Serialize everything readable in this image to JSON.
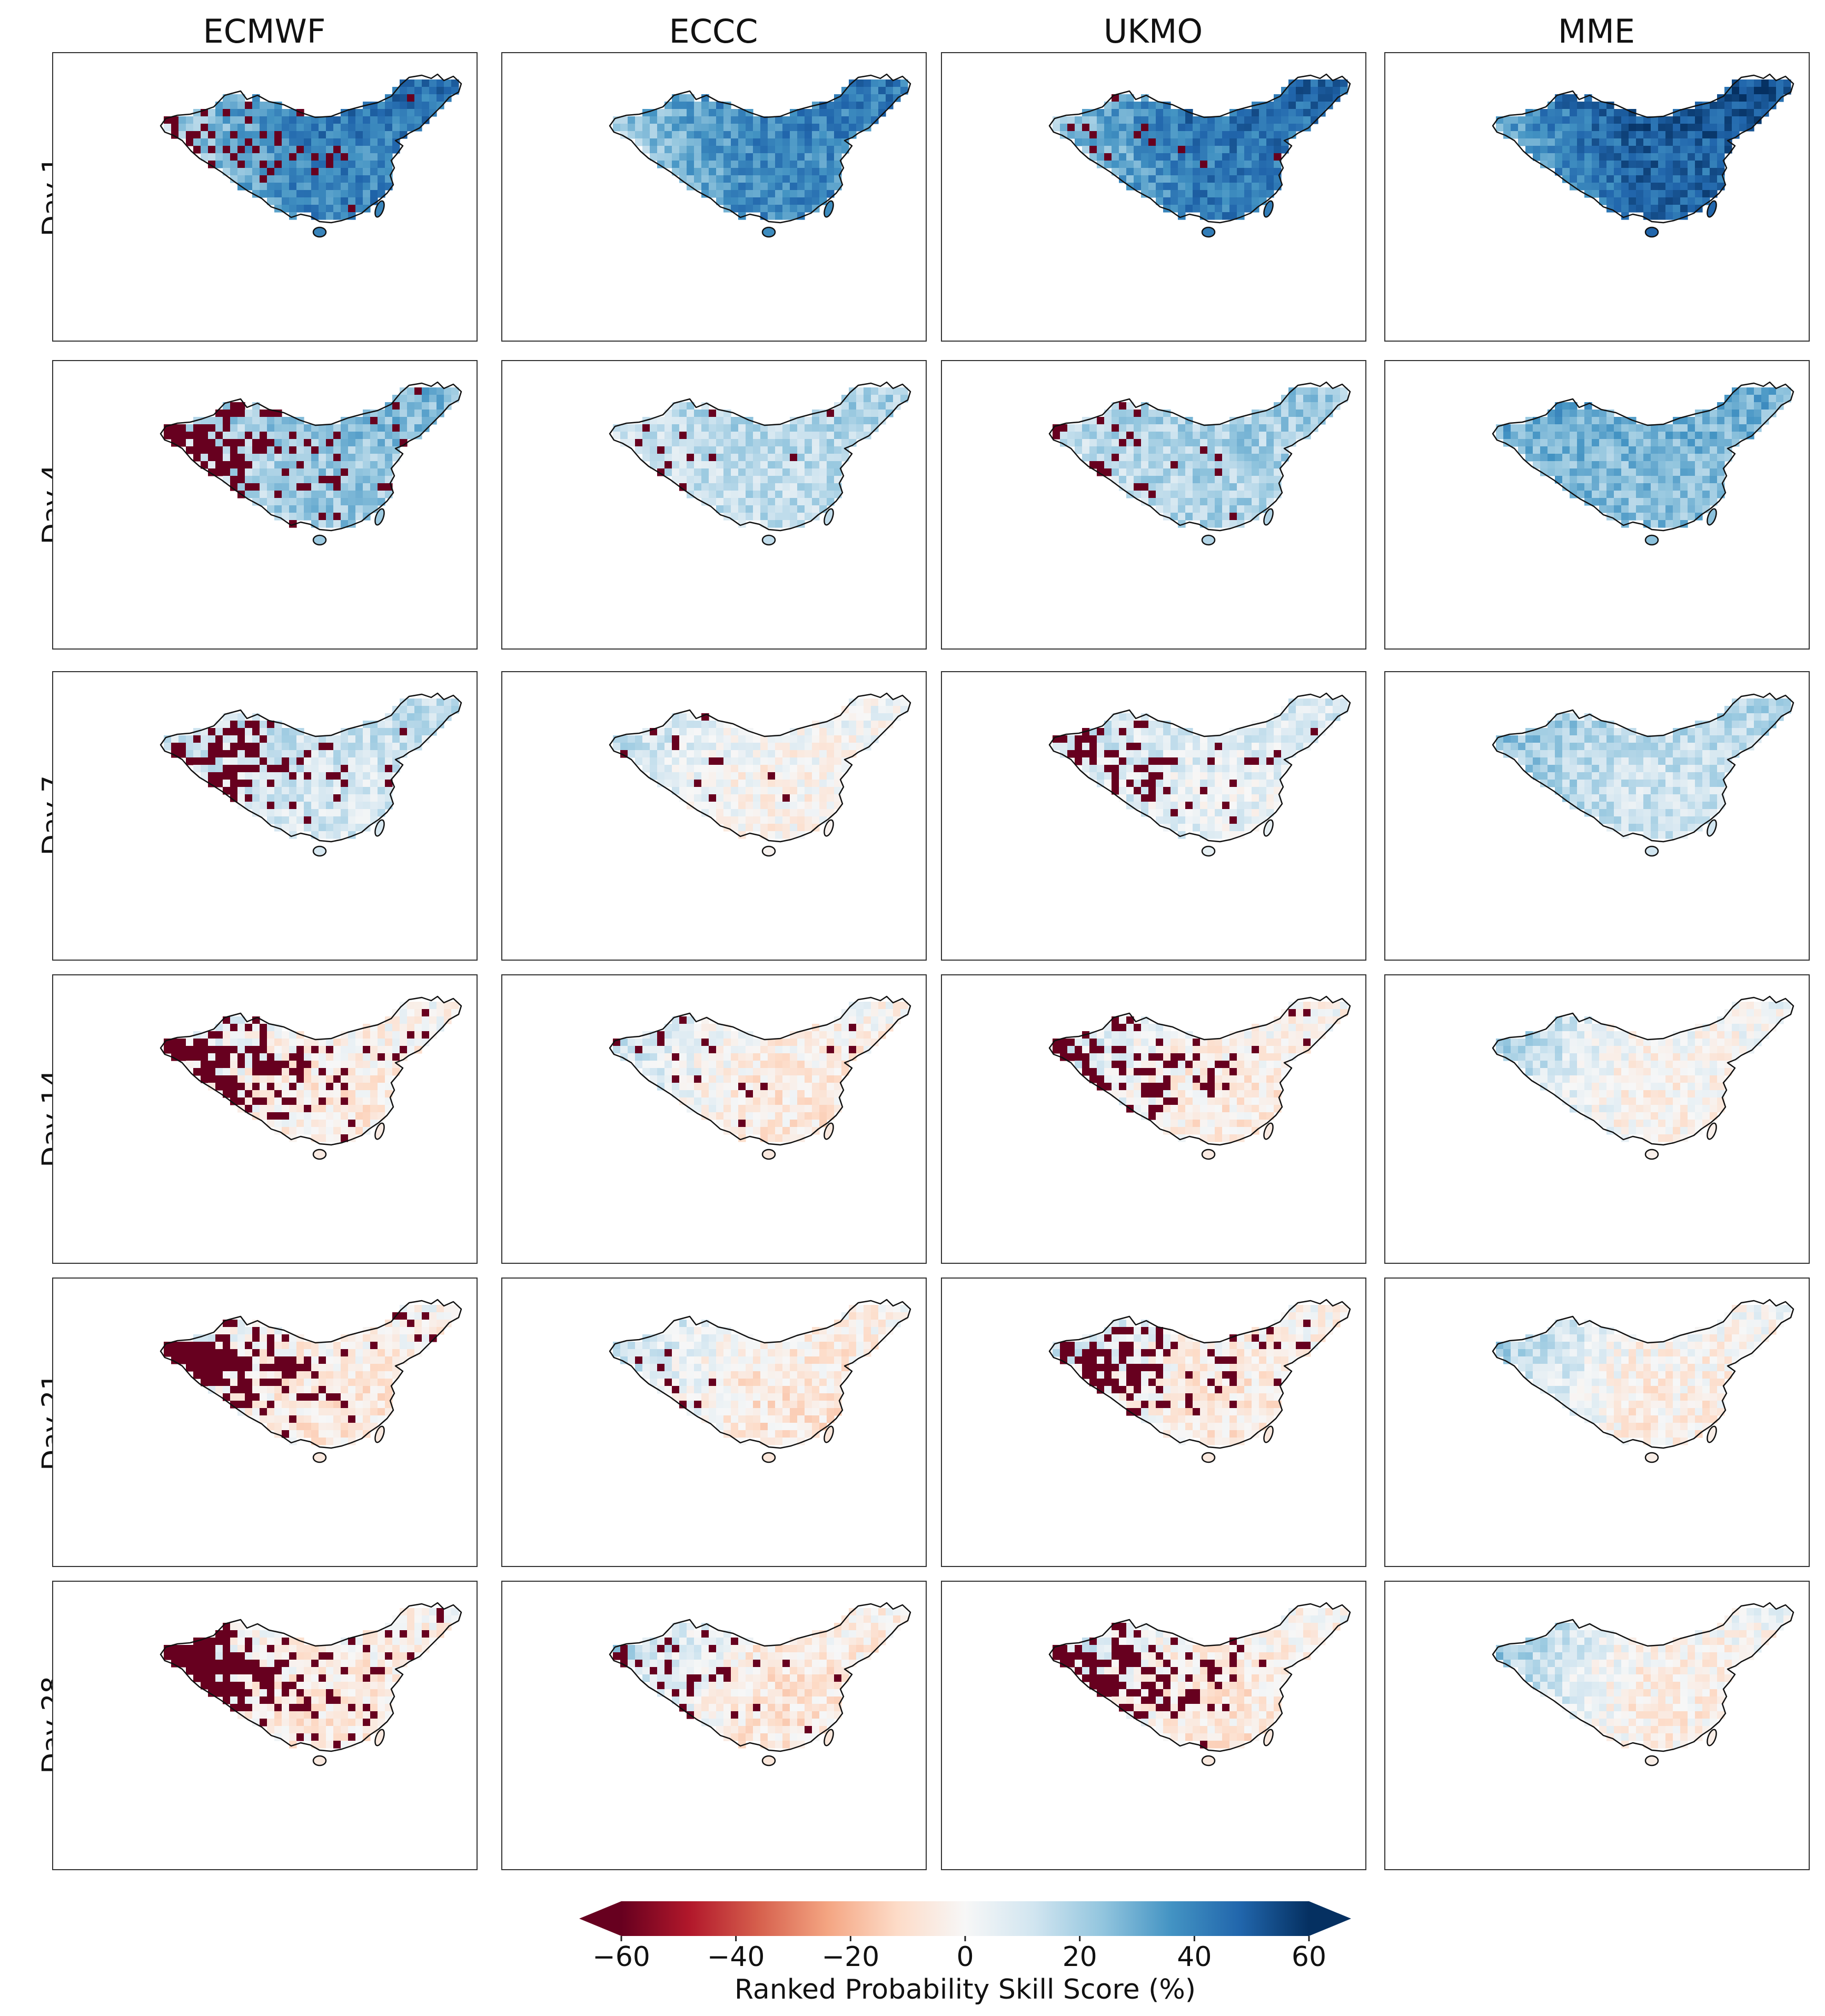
{
  "figure": {
    "columns": [
      "ECMWF",
      "ECCC",
      "UKMO",
      "MME"
    ],
    "rows": [
      "Day 1",
      "Day 4",
      "Day 7",
      "Day 14",
      "Day 21",
      "Day 28"
    ]
  },
  "chart_data": {
    "type": "heatmap",
    "description_units": "Ranked Probability Skill Score (%) on a lat/lon grid over China; values approximated per panel",
    "panels": [
      {
        "model": "ECMWF",
        "lead": "Day 1",
        "base_rpss": 40,
        "west_rpss": 15,
        "bad_fraction": 0.22
      },
      {
        "model": "ECCC",
        "lead": "Day 1",
        "base_rpss": 38,
        "west_rpss": 18,
        "bad_fraction": 0.0
      },
      {
        "model": "UKMO",
        "lead": "Day 1",
        "base_rpss": 42,
        "west_rpss": 20,
        "bad_fraction": 0.06
      },
      {
        "model": "MME",
        "lead": "Day 1",
        "base_rpss": 48,
        "west_rpss": 30,
        "bad_fraction": 0.0
      },
      {
        "model": "ECMWF",
        "lead": "Day 4",
        "base_rpss": 22,
        "west_rpss": 10,
        "bad_fraction": 0.55
      },
      {
        "model": "ECCC",
        "lead": "Day 4",
        "base_rpss": 15,
        "west_rpss": 10,
        "bad_fraction": 0.08
      },
      {
        "model": "UKMO",
        "lead": "Day 4",
        "base_rpss": 18,
        "west_rpss": 12,
        "bad_fraction": 0.2
      },
      {
        "model": "MME",
        "lead": "Day 4",
        "base_rpss": 25,
        "west_rpss": 28,
        "bad_fraction": 0.0
      },
      {
        "model": "ECMWF",
        "lead": "Day 7",
        "base_rpss": 10,
        "west_rpss": 8,
        "bad_fraction": 0.45
      },
      {
        "model": "ECCC",
        "lead": "Day 7",
        "base_rpss": -2,
        "west_rpss": 12,
        "bad_fraction": 0.05
      },
      {
        "model": "UKMO",
        "lead": "Day 7",
        "base_rpss": 5,
        "west_rpss": 10,
        "bad_fraction": 0.3
      },
      {
        "model": "MME",
        "lead": "Day 7",
        "base_rpss": 12,
        "west_rpss": 22,
        "bad_fraction": 0.0
      },
      {
        "model": "ECMWF",
        "lead": "Day 14",
        "base_rpss": -5,
        "west_rpss": 5,
        "bad_fraction": 0.6
      },
      {
        "model": "ECCC",
        "lead": "Day 14",
        "base_rpss": -6,
        "west_rpss": 12,
        "bad_fraction": 0.1
      },
      {
        "model": "UKMO",
        "lead": "Day 14",
        "base_rpss": -5,
        "west_rpss": 10,
        "bad_fraction": 0.5
      },
      {
        "model": "MME",
        "lead": "Day 14",
        "base_rpss": -3,
        "west_rpss": 18,
        "bad_fraction": 0.0
      },
      {
        "model": "ECMWF",
        "lead": "Day 21",
        "base_rpss": -6,
        "west_rpss": 5,
        "bad_fraction": 0.65
      },
      {
        "model": "ECCC",
        "lead": "Day 21",
        "base_rpss": -7,
        "west_rpss": 14,
        "bad_fraction": 0.06
      },
      {
        "model": "UKMO",
        "lead": "Day 21",
        "base_rpss": -6,
        "west_rpss": 10,
        "bad_fraction": 0.5
      },
      {
        "model": "MME",
        "lead": "Day 21",
        "base_rpss": -4,
        "west_rpss": 18,
        "bad_fraction": 0.0
      },
      {
        "model": "ECMWF",
        "lead": "Day 28",
        "base_rpss": -6,
        "west_rpss": 5,
        "bad_fraction": 0.75
      },
      {
        "model": "ECCC",
        "lead": "Day 28",
        "base_rpss": -7,
        "west_rpss": 15,
        "bad_fraction": 0.2
      },
      {
        "model": "UKMO",
        "lead": "Day 28",
        "base_rpss": -6,
        "west_rpss": 10,
        "bad_fraction": 0.55
      },
      {
        "model": "MME",
        "lead": "Day 28",
        "base_rpss": -4,
        "west_rpss": 20,
        "bad_fraction": 0.0
      }
    ],
    "bad_value": -60,
    "colorbar": {
      "label": "Ranked Probability Skill Score (%)",
      "vmin": -60,
      "vmax": 60,
      "ticks": [
        -60,
        -40,
        -20,
        0,
        20,
        40,
        60
      ],
      "tick_labels": [
        "−60",
        "−40",
        "−20",
        "0",
        "20",
        "40",
        "60"
      ],
      "extend": "both",
      "colormap": [
        "#67001f",
        "#b2182b",
        "#d6604d",
        "#f4a582",
        "#fddbc7",
        "#f7f7f7",
        "#d1e5f0",
        "#92c5de",
        "#4393c3",
        "#2166ac",
        "#053061"
      ]
    }
  }
}
